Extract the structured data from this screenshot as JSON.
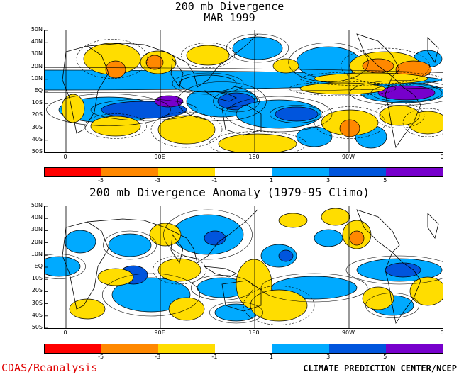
{
  "top": {
    "title_line1": "200 mb Divergence",
    "title_line2": "MAR 1999"
  },
  "bottom": {
    "title": "200 mb Divergence Anomaly (1979-95 Climo)"
  },
  "lat_labels": [
    "50N",
    "40N",
    "30N",
    "20N",
    "10N",
    "EQ",
    "10S",
    "20S",
    "30S",
    "40S",
    "50S"
  ],
  "lon_labels": [
    "0",
    "90E",
    "180",
    "90W",
    "0"
  ],
  "colorbar": {
    "colors": [
      "#ff0000",
      "#ff8800",
      "#ffdd00",
      "#ffffff",
      "#00aaff",
      "#0055dd",
      "#7700cc"
    ],
    "labels": [
      "-5",
      "-3",
      "-1",
      "1",
      "3",
      "5"
    ]
  },
  "footer": {
    "left": "CDAS/Reanalysis",
    "right": "CLIMATE PREDICTION CENTER/NCEP"
  },
  "colors": {
    "land_outline": "#000000",
    "contour": "#000000"
  }
}
